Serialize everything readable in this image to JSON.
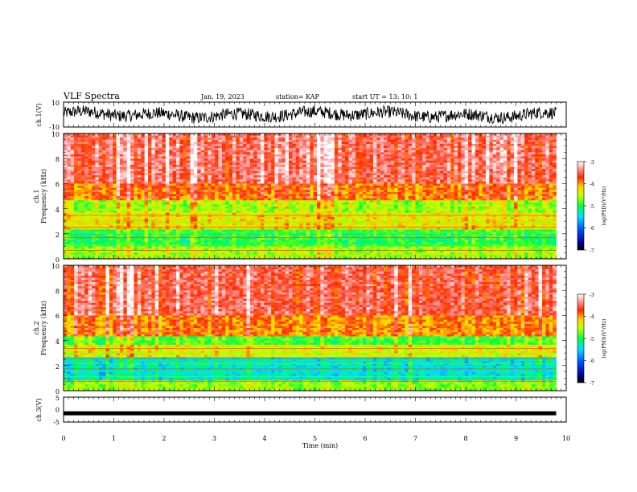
{
  "header": {
    "title": "VLF Spectra",
    "date": "Jan. 19, 2023",
    "station": "station= KAP",
    "start": "start  UT  =   13: 10: 1"
  },
  "chart_data": [
    {
      "type": "line",
      "id": "ch1-waveform",
      "ylabel": "ch.1(V)",
      "ylim": [
        -10,
        10
      ],
      "yticks": [
        "10",
        "-10"
      ],
      "xlim": [
        0,
        10
      ],
      "x_end": 9.8,
      "description_values": {
        "baseline": 0,
        "amplitude_approx": 5
      }
    },
    {
      "type": "heatmap",
      "id": "ch1-spectrogram",
      "ylabel_lines": [
        "ch.1",
        "Frequency  (kHz)"
      ],
      "ylim": [
        0,
        10
      ],
      "yticks": [
        "0",
        "2",
        "4",
        "6",
        "8",
        "10"
      ],
      "xlim": [
        0,
        10
      ],
      "x_end": 9.8,
      "colorbar": {
        "label": "log(PSD)(V²/Hz)",
        "ticks": [
          "-3",
          "-4",
          "-5",
          "-6",
          "-7"
        ],
        "range": [
          -7,
          -3
        ]
      },
      "bands": [
        {
          "f_low": 0,
          "f_high": 1.0,
          "level": -4.6
        },
        {
          "f_low": 1.0,
          "f_high": 2.3,
          "level": -5.0
        },
        {
          "f_low": 2.3,
          "f_high": 3.6,
          "level": -4.3
        },
        {
          "f_low": 3.6,
          "f_high": 4.7,
          "level": -4.6
        },
        {
          "f_low": 4.7,
          "f_high": 6.0,
          "level": -3.9
        },
        {
          "f_low": 6.0,
          "f_high": 10.0,
          "level": -3.5
        }
      ]
    },
    {
      "type": "heatmap",
      "id": "ch2-spectrogram",
      "ylabel_lines": [
        "ch.2",
        "Frequency  (kHz)"
      ],
      "ylim": [
        0,
        10
      ],
      "yticks": [
        "0",
        "2",
        "4",
        "6",
        "8",
        "10"
      ],
      "xlim": [
        0,
        10
      ],
      "x_end": 9.8,
      "colorbar": {
        "label": "log(PSD)(V²/Hz)",
        "ticks": [
          "-3",
          "-4",
          "-5",
          "-6",
          "-7"
        ],
        "range": [
          -7,
          -3
        ]
      },
      "bands": [
        {
          "f_low": 0,
          "f_high": 0.8,
          "level": -4.7
        },
        {
          "f_low": 0.8,
          "f_high": 2.6,
          "level": -5.4
        },
        {
          "f_low": 2.6,
          "f_high": 3.6,
          "level": -4.4
        },
        {
          "f_low": 3.6,
          "f_high": 4.4,
          "level": -4.9
        },
        {
          "f_low": 4.4,
          "f_high": 6.0,
          "level": -4.0
        },
        {
          "f_low": 6.0,
          "f_high": 10.0,
          "level": -3.6
        }
      ]
    },
    {
      "type": "line",
      "id": "ch3-waveform",
      "ylabel": "ch.3(V)",
      "ylim": [
        -5,
        5
      ],
      "yticks": [
        "5",
        "0",
        "-5"
      ],
      "xlim": [
        0,
        10
      ],
      "x_end": 9.8,
      "constant_value": -1.5,
      "xlabel": "Time  (min)",
      "xticks": [
        "0",
        "1",
        "2",
        "3",
        "4",
        "5",
        "6",
        "7",
        "8",
        "9",
        "10"
      ]
    }
  ]
}
